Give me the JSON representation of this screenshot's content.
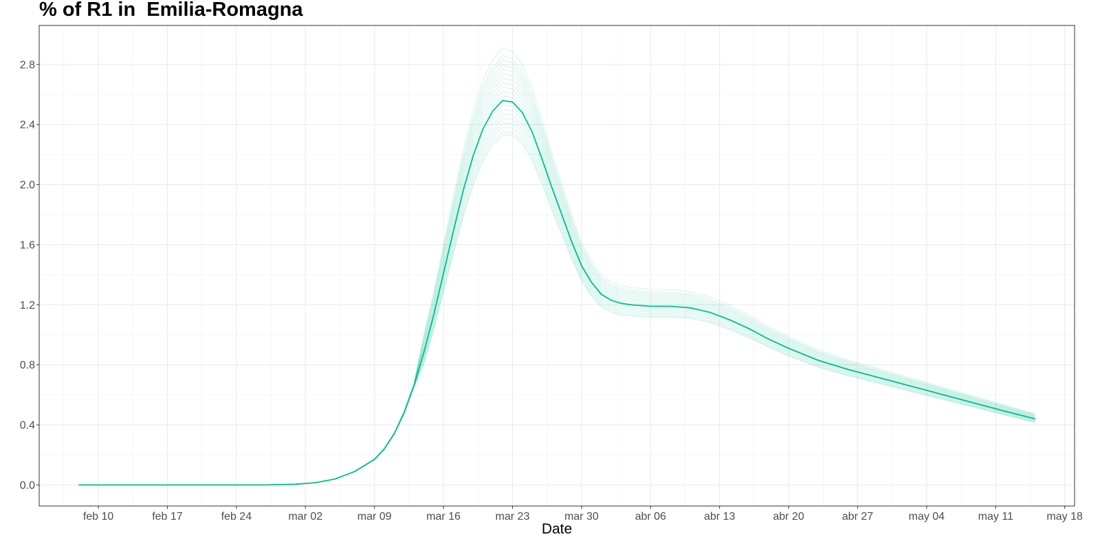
{
  "chart_data": {
    "type": "line",
    "title": "% of R1 in  Emilia-Romagna",
    "xlabel": "Date",
    "ylabel": "",
    "x_tick_labels": [
      "feb 10",
      "feb 17",
      "feb 24",
      "mar 02",
      "mar 09",
      "mar 16",
      "mar 23",
      "mar 30",
      "abr 06",
      "abr 13",
      "abr 20",
      "abr 27",
      "may 04",
      "may 11",
      "may 18"
    ],
    "x_tick_dates": [
      "2020-02-10",
      "2020-02-17",
      "2020-02-24",
      "2020-03-02",
      "2020-03-09",
      "2020-03-16",
      "2020-03-23",
      "2020-03-30",
      "2020-04-06",
      "2020-04-13",
      "2020-04-20",
      "2020-04-27",
      "2020-05-04",
      "2020-05-11",
      "2020-05-18"
    ],
    "xlim": [
      "2020-02-04",
      "2020-05-19"
    ],
    "y_ticks": [
      0.0,
      0.4,
      0.8,
      1.2,
      1.6,
      2.0,
      2.4,
      2.8
    ],
    "y_tick_labels": [
      "0.0",
      "0.4",
      "0.8",
      "1.2",
      "1.6",
      "2.0",
      "2.4",
      "2.8"
    ],
    "ylim": [
      -0.14,
      3.06
    ],
    "grid": true,
    "line_color": "#00BF8C",
    "ensemble_note_free": true,
    "ensemble_peaks": [
      2.91,
      2.86,
      2.83,
      2.8,
      2.77,
      2.74,
      2.71,
      2.68,
      2.65,
      2.62,
      2.59,
      2.56,
      2.53,
      2.5,
      2.47,
      2.44,
      2.41,
      2.38,
      2.35,
      2.33
    ],
    "series": [
      {
        "x": [
          "2020-02-08",
          "2020-02-15",
          "2020-02-22",
          "2020-02-27",
          "2020-03-01",
          "2020-03-03",
          "2020-03-05",
          "2020-03-07",
          "2020-03-09",
          "2020-03-10",
          "2020-03-11",
          "2020-03-12",
          "2020-03-13",
          "2020-03-14",
          "2020-03-15",
          "2020-03-16",
          "2020-03-17",
          "2020-03-18",
          "2020-03-19",
          "2020-03-20",
          "2020-03-21",
          "2020-03-22",
          "2020-03-23",
          "2020-03-24",
          "2020-03-25",
          "2020-03-26",
          "2020-03-27",
          "2020-03-28",
          "2020-03-29",
          "2020-03-30",
          "2020-03-31",
          "2020-04-01",
          "2020-04-02",
          "2020-04-03",
          "2020-04-04",
          "2020-04-06",
          "2020-04-08",
          "2020-04-10",
          "2020-04-12",
          "2020-04-14",
          "2020-04-16",
          "2020-04-18",
          "2020-04-20",
          "2020-04-23",
          "2020-04-26",
          "2020-04-30",
          "2020-05-04",
          "2020-05-08",
          "2020-05-12",
          "2020-05-15"
        ],
        "values": [
          0.0,
          0.0,
          0.0,
          0.0,
          0.005,
          0.015,
          0.04,
          0.09,
          0.17,
          0.24,
          0.34,
          0.48,
          0.66,
          0.88,
          1.13,
          1.41,
          1.69,
          1.96,
          2.19,
          2.37,
          2.49,
          2.56,
          2.55,
          2.48,
          2.35,
          2.17,
          1.98,
          1.8,
          1.62,
          1.46,
          1.35,
          1.27,
          1.23,
          1.21,
          1.2,
          1.19,
          1.19,
          1.18,
          1.15,
          1.1,
          1.04,
          0.97,
          0.91,
          0.83,
          0.77,
          0.7,
          0.63,
          0.56,
          0.49,
          0.44
        ]
      }
    ]
  }
}
